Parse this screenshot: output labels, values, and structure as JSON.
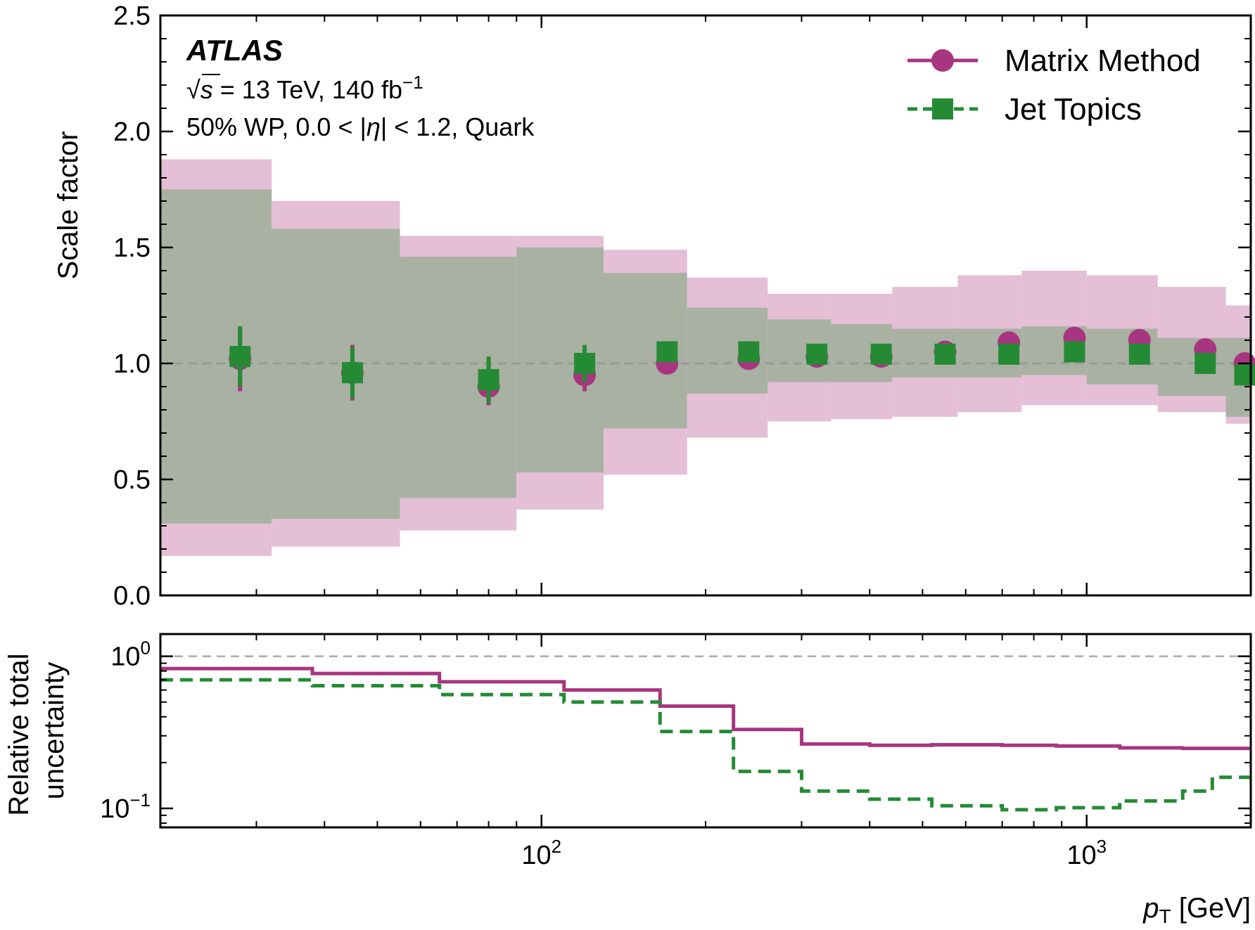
{
  "chart_data": [
    {
      "type": "line",
      "panel": "top",
      "ylabel": "Scale factor",
      "ylim": [
        0,
        2.5
      ],
      "yticks": [
        "0.0",
        "0.5",
        "1.0",
        "1.5",
        "2.0",
        "2.5"
      ],
      "xscale": "log",
      "xlim": [
        20,
        2000
      ],
      "reference_line": 1.0,
      "bins": [
        20,
        32,
        55,
        90,
        130,
        185,
        260,
        340,
        440,
        580,
        760,
        1000,
        1350,
        1800,
        2000
      ],
      "x": [
        28,
        45,
        80,
        120,
        170,
        240,
        320,
        420,
        550,
        720,
        950,
        1250,
        1650,
        1950
      ],
      "annotations": {
        "atlas": "ATLAS",
        "energy_prefix": "√",
        "energy_s": "s",
        "energy_text": " =  13 TeV, 140 fb",
        "energy_sup": "−1",
        "selection_prefix": "50% WP, 0.0 < |",
        "selection_eta": "η",
        "selection_suffix": "| < 1.2, Quark"
      },
      "legend_position": "top-right",
      "series": [
        {
          "name": "Matrix Method",
          "color": "#a8357f",
          "band_color": "#e4bfd6",
          "marker": "circle",
          "values": [
            1.02,
            0.96,
            0.9,
            0.95,
            1.0,
            1.02,
            1.03,
            1.03,
            1.05,
            1.09,
            1.11,
            1.1,
            1.06,
            1.0
          ],
          "errors": [
            0.14,
            0.12,
            0.08,
            0.07,
            0.02,
            0.02,
            0.02,
            0.02,
            0.02,
            0.02,
            0.02,
            0.02,
            0.02,
            0.02
          ],
          "band_low": [
            0.17,
            0.21,
            0.28,
            0.37,
            0.52,
            0.68,
            0.75,
            0.76,
            0.77,
            0.79,
            0.82,
            0.82,
            0.79,
            0.74
          ],
          "band_high": [
            1.88,
            1.7,
            1.55,
            1.55,
            1.49,
            1.37,
            1.3,
            1.3,
            1.33,
            1.38,
            1.4,
            1.38,
            1.33,
            1.25
          ]
        },
        {
          "name": "Jet Topics",
          "color": "#248b34",
          "band_color": "#a9b1a3",
          "marker": "square",
          "values": [
            1.03,
            0.96,
            0.93,
            1.0,
            1.05,
            1.05,
            1.04,
            1.04,
            1.04,
            1.04,
            1.05,
            1.04,
            1.0,
            0.95
          ],
          "errors": [
            0.13,
            0.11,
            0.1,
            0.08,
            0.03,
            0.03,
            0.03,
            0.02,
            0.02,
            0.02,
            0.02,
            0.02,
            0.02,
            0.02
          ],
          "band_low": [
            0.31,
            0.33,
            0.42,
            0.53,
            0.72,
            0.87,
            0.92,
            0.92,
            0.94,
            0.94,
            0.95,
            0.91,
            0.86,
            0.77
          ],
          "band_high": [
            1.75,
            1.58,
            1.46,
            1.5,
            1.39,
            1.24,
            1.19,
            1.17,
            1.15,
            1.15,
            1.16,
            1.15,
            1.11,
            1.11
          ]
        }
      ]
    },
    {
      "type": "line",
      "panel": "bottom",
      "ylabel_line1": "Relative total",
      "ylabel_line2": "uncertainty",
      "yscale": "log",
      "ylim": [
        0.075,
        1.4
      ],
      "yticks": [
        {
          "value": 1,
          "base": "10",
          "exp": "0"
        },
        {
          "value": 0.1,
          "base": "10",
          "exp": "−1"
        }
      ],
      "xscale": "log",
      "xlim": [
        20,
        2000
      ],
      "xlabel_p": "p",
      "xlabel_sub": "T",
      "xlabel_unit": " [GeV]",
      "xticks": [
        {
          "value": 100,
          "base": "10",
          "exp": "2"
        },
        {
          "value": 1000,
          "base": "10",
          "exp": "3"
        }
      ],
      "reference_line": 1.0,
      "series": [
        {
          "name": "Matrix Method",
          "color": "#a8357f",
          "style": "solid",
          "bins": [
            20,
            38,
            65,
            110,
            165,
            225,
            300,
            400,
            520,
            700,
            880,
            1150,
            1500,
            2000
          ],
          "values": [
            0.83,
            0.77,
            0.68,
            0.6,
            0.47,
            0.33,
            0.265,
            0.26,
            0.262,
            0.26,
            0.257,
            0.25,
            0.248
          ]
        },
        {
          "name": "Jet Topics",
          "color": "#248b34",
          "style": "dashed",
          "bins": [
            20,
            38,
            65,
            110,
            165,
            225,
            300,
            400,
            520,
            700,
            880,
            1150,
            1500,
            1700,
            2000
          ],
          "values": [
            0.7,
            0.64,
            0.56,
            0.5,
            0.32,
            0.175,
            0.13,
            0.115,
            0.104,
            0.098,
            0.101,
            0.112,
            0.13,
            0.16
          ]
        }
      ]
    }
  ]
}
